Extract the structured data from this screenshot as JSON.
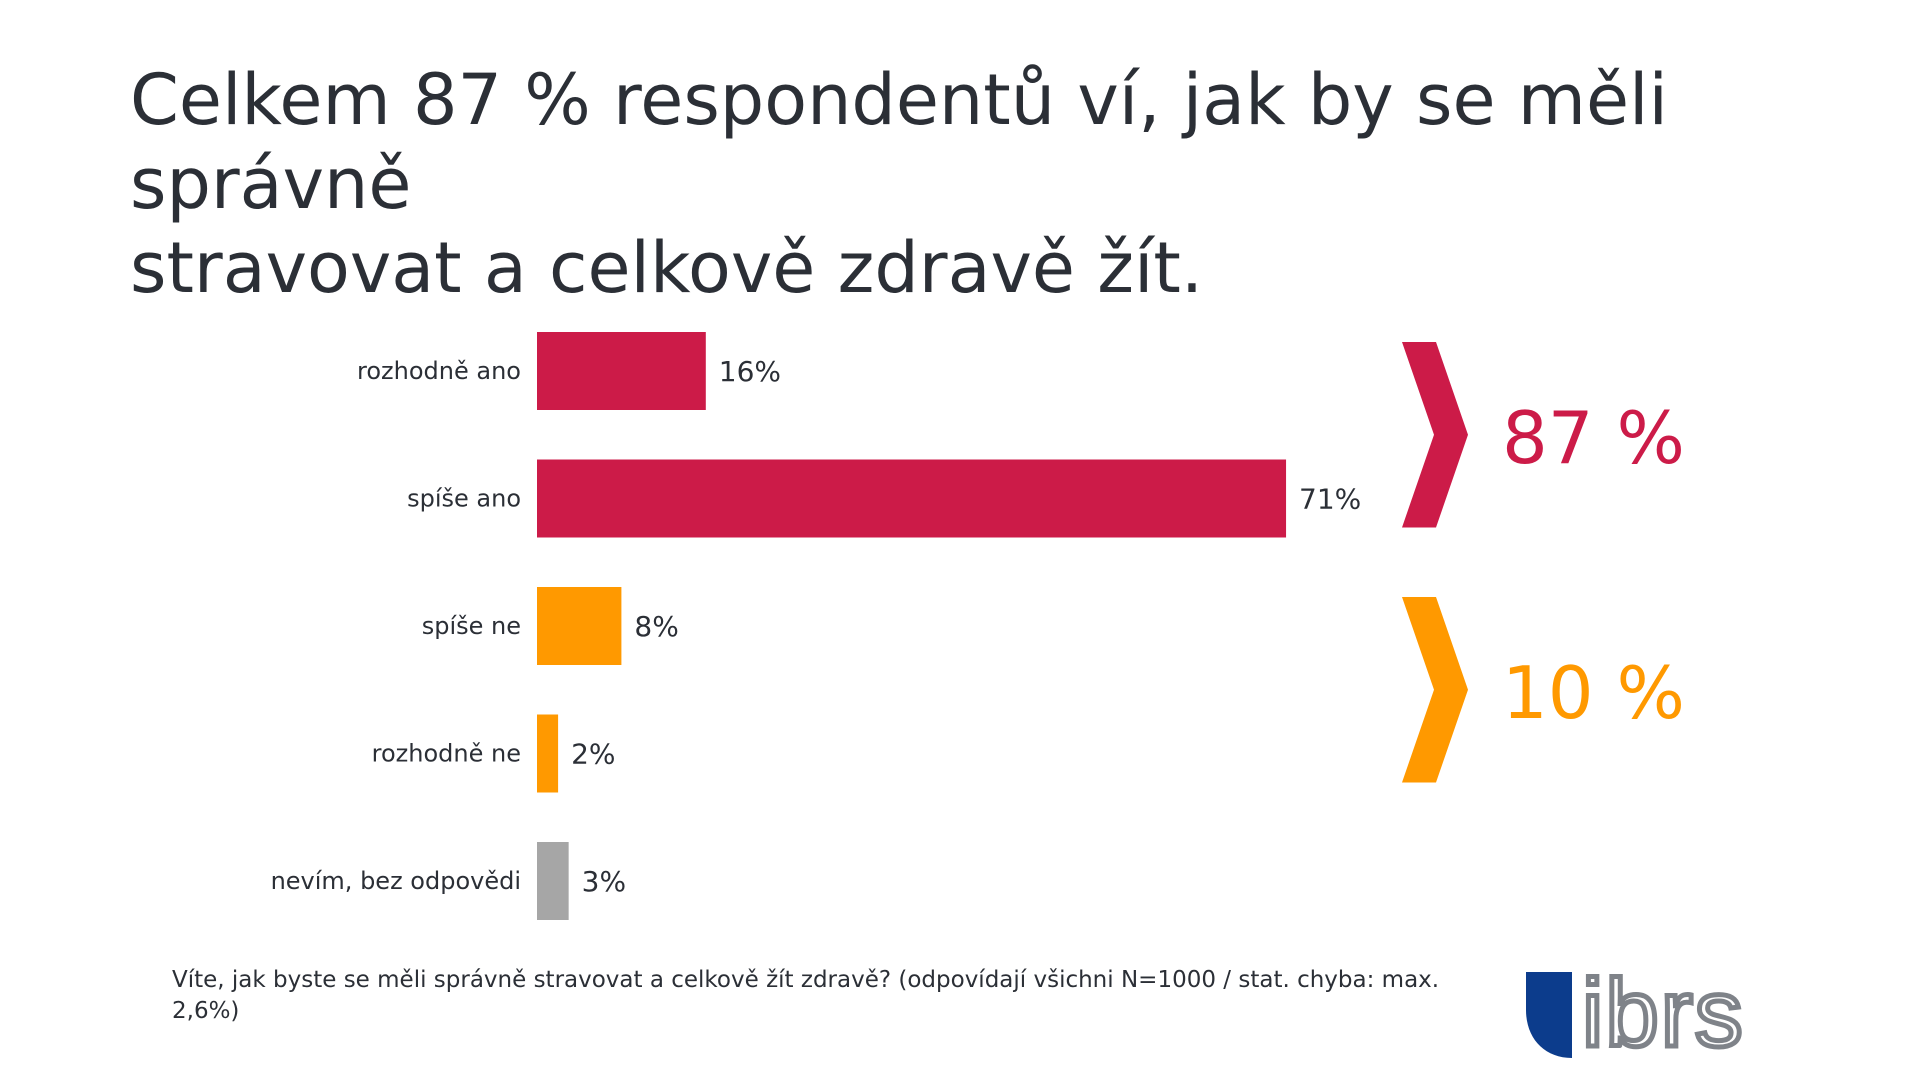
{
  "title_lines": [
    "Celkem 87 % respondentů ví, jak by se měli správně",
    "stravovat a celkově zdravě žít."
  ],
  "chart_data": {
    "type": "bar",
    "orientation": "horizontal",
    "categories": [
      "rozhodně ano",
      "spíše ano",
      "spíše ne",
      "rozhodně ne",
      "nevím, bez odpovědi"
    ],
    "values": [
      16,
      71,
      8,
      2,
      3
    ],
    "value_labels": [
      "16%",
      "71%",
      "8%",
      "2%",
      "3%"
    ],
    "bar_colors": [
      "#cc1b48",
      "#cc1b48",
      "#ff9900",
      "#ff9900",
      "#a6a6a6"
    ],
    "xlim": [
      0,
      100
    ],
    "grid": false,
    "legend": "none",
    "groups": [
      {
        "label": "87 %",
        "color": "#cc1b48",
        "categories": [
          "rozhodně ano",
          "spíše ano"
        ]
      },
      {
        "label": "10 %",
        "color": "#ff9900",
        "categories": [
          "spíše ne",
          "rozhodně ne"
        ]
      }
    ]
  },
  "footnote": "Víte, jak byste se měli správně stravovat a celkově žít zdravě? (odpovídají všichni N=1000 / stat. chyba: max. 2,6%)",
  "logo": {
    "text": "ibrs",
    "mark_color": "#0c3c8c",
    "text_color": "#7f8389"
  }
}
